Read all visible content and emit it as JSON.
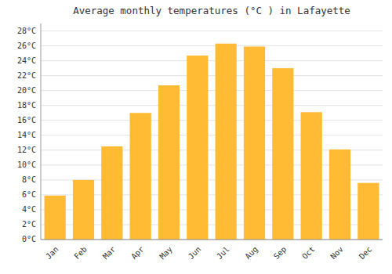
{
  "chart_data": {
    "type": "bar",
    "title": "Average monthly temperatures (°C ) in Lafayette",
    "categories": [
      "Jan",
      "Feb",
      "Mar",
      "Apr",
      "May",
      "Jun",
      "Jul",
      "Aug",
      "Sep",
      "Oct",
      "Nov",
      "Dec"
    ],
    "values": [
      5.9,
      8.0,
      12.5,
      17.0,
      20.7,
      24.7,
      26.3,
      25.9,
      23.0,
      17.1,
      12.1,
      7.6
    ],
    "color": "#FFBB33",
    "ylim": [
      0,
      29
    ],
    "yticks": [
      {
        "value": 0,
        "label": "0°C"
      },
      {
        "value": 2,
        "label": "2°C"
      },
      {
        "value": 4,
        "label": "4°C"
      },
      {
        "value": 6,
        "label": "6°C"
      },
      {
        "value": 8,
        "label": "8°C"
      },
      {
        "value": 10,
        "label": "10°C"
      },
      {
        "value": 12,
        "label": "12°C"
      },
      {
        "value": 14,
        "label": "14°C"
      },
      {
        "value": 16,
        "label": "16°C"
      },
      {
        "value": 18,
        "label": "18°C"
      },
      {
        "value": 20,
        "label": "20°C"
      },
      {
        "value": 22,
        "label": "22°C"
      },
      {
        "value": 24,
        "label": "24°C"
      },
      {
        "value": 26,
        "label": "26°C"
      },
      {
        "value": 28,
        "label": "28°C"
      }
    ],
    "grid": true
  }
}
